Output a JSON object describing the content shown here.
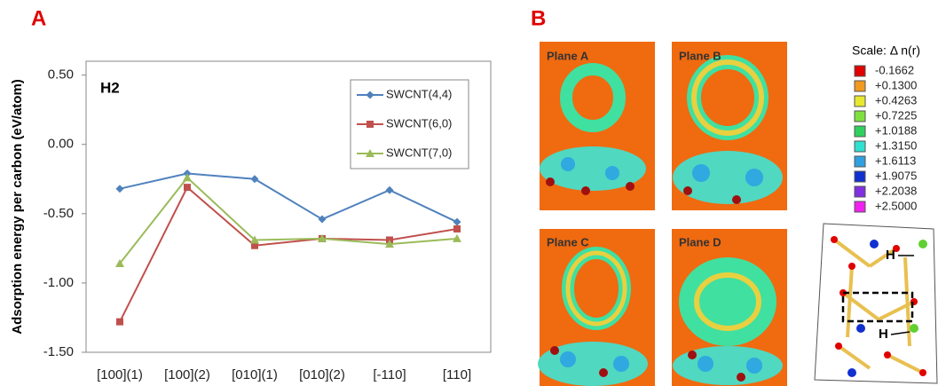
{
  "panels": {
    "a": "A",
    "b": "B"
  },
  "chart_data": {
    "type": "line",
    "title": "H2",
    "ylabel": "Adsorption energy per carbon (eV/atom)",
    "categories": [
      "[100](1)",
      "[100](2)",
      "[010](1)",
      "[010](2)",
      "[-110]",
      "[110]"
    ],
    "series": [
      {
        "name": "SWCNT(4,4)",
        "color": "#4f81bd",
        "marker": "diamond",
        "values": [
          -0.32,
          -0.21,
          -0.25,
          -0.54,
          -0.33,
          -0.56
        ]
      },
      {
        "name": "SWCNT(6,0)",
        "color": "#c0504d",
        "marker": "square",
        "values": [
          -1.28,
          -0.31,
          -0.73,
          -0.68,
          -0.69,
          -0.61
        ]
      },
      {
        "name": "SWCNT(7,0)",
        "color": "#9bbb59",
        "marker": "triangle",
        "values": [
          -0.86,
          -0.24,
          -0.69,
          -0.68,
          -0.72,
          -0.68
        ]
      }
    ],
    "ylim": [
      -1.5,
      0.6
    ],
    "yticks": [
      {
        "value": 0.5,
        "label": "0.50"
      },
      {
        "value": 0,
        "label": "0.00"
      },
      {
        "value": -0.5,
        "label": "-0.50"
      },
      {
        "value": -1,
        "label": "-1.00"
      },
      {
        "value": -1.5,
        "label": "-1.50"
      }
    ],
    "grid": false
  },
  "planes": [
    "Plane A",
    "Plane B",
    "Plane C",
    "Plane D"
  ],
  "scale": {
    "title": "Scale: Δ n(r)",
    "entries": [
      {
        "label": "-0.1662",
        "color": "#e00000"
      },
      {
        "label": "+0.1300",
        "color": "#f09a20"
      },
      {
        "label": "+0.4263",
        "color": "#e8e830"
      },
      {
        "label": "+0.7225",
        "color": "#80e040"
      },
      {
        "label": "+1.0188",
        "color": "#30d060"
      },
      {
        "label": "+1.3150",
        "color": "#30e0d0"
      },
      {
        "label": "+1.6113",
        "color": "#30a0e0"
      },
      {
        "label": "+1.9075",
        "color": "#1030d0"
      },
      {
        "label": "+2.2038",
        "color": "#8030e0"
      },
      {
        "label": "+2.5000",
        "color": "#f020f0"
      }
    ]
  },
  "structure_labels": [
    "H",
    "H"
  ]
}
